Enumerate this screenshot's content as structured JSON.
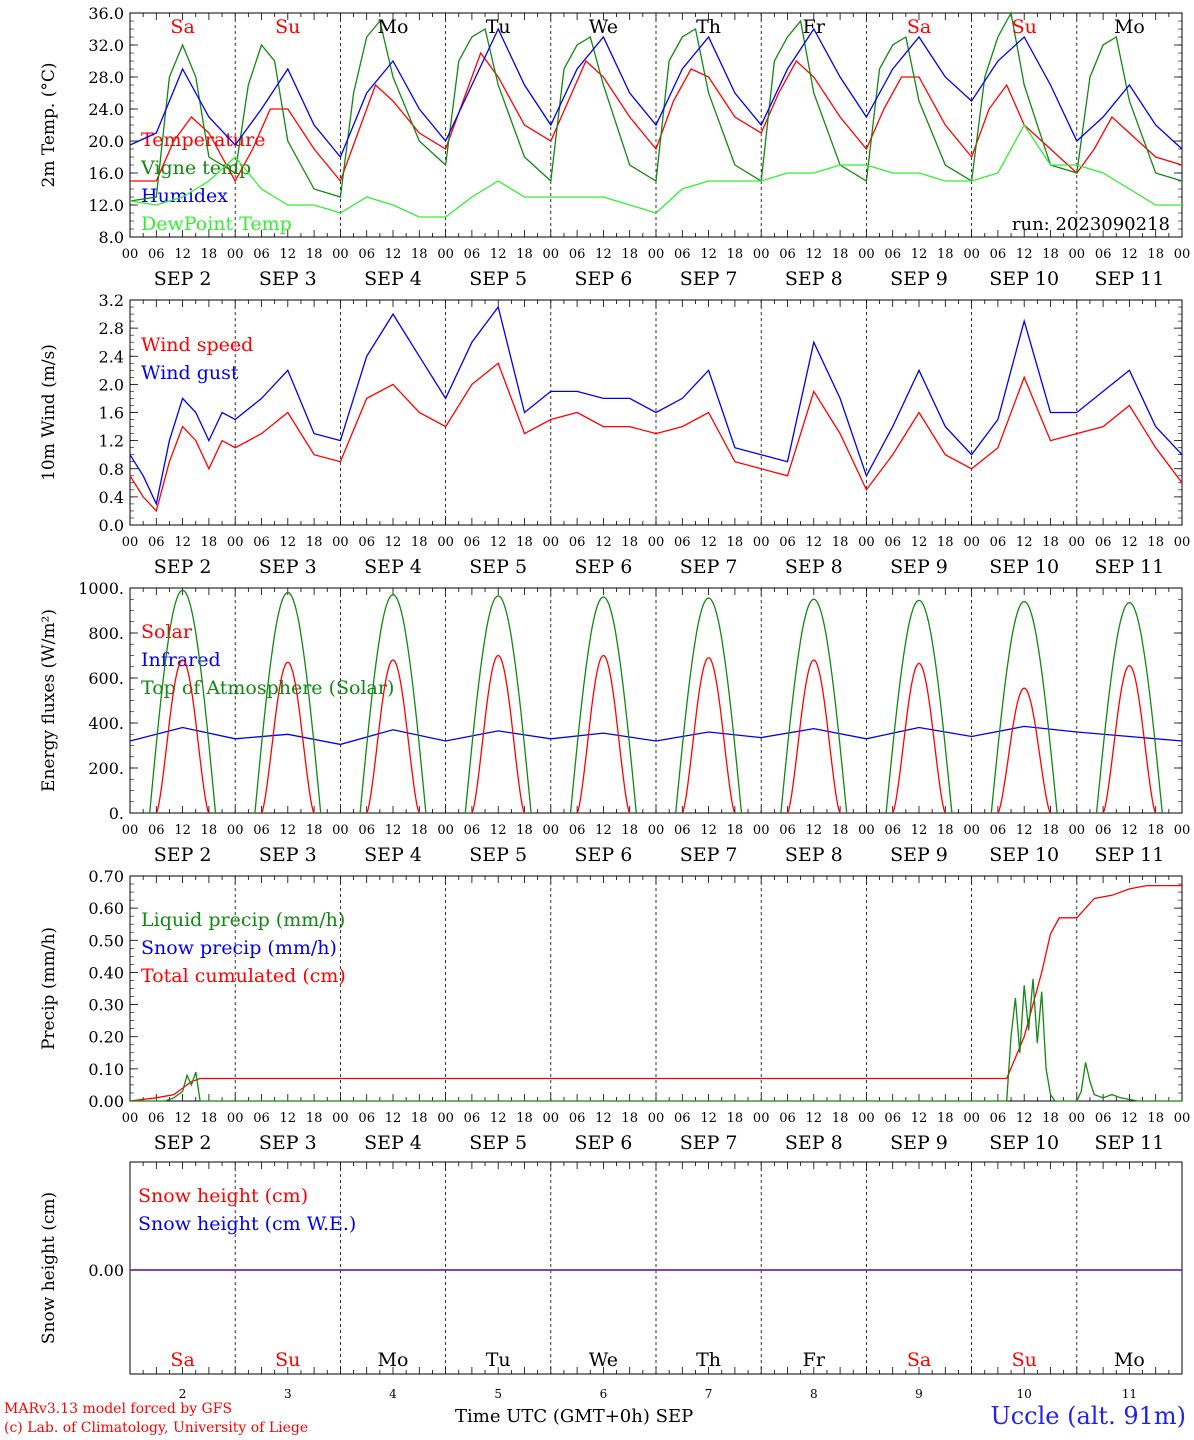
{
  "chart_data": [
    {
      "type": "line",
      "ylabel": "2m Temp. (°C)",
      "ylim": [
        8.0,
        36.0
      ],
      "yticks": [
        "8.0",
        "12.0",
        "16.0",
        "20.0",
        "24.0",
        "28.0",
        "32.0",
        "36.0"
      ],
      "annotation": "run: 2023090218",
      "legend": [
        "Temperature",
        "Vigne temp",
        "Humidex",
        "DewPoint Temp"
      ],
      "series": [
        {
          "name": "Temperature",
          "color": "#ff0000",
          "x": [
            0,
            6,
            10,
            14,
            18,
            24,
            28,
            32,
            36,
            42,
            48,
            52,
            56,
            60,
            66,
            72,
            76,
            80,
            84,
            90,
            96,
            100,
            104,
            108,
            114,
            120,
            124,
            128,
            132,
            138,
            144,
            148,
            152,
            156,
            162,
            168,
            172,
            176,
            180,
            186,
            192,
            196,
            200,
            204,
            210,
            216,
            220,
            224,
            228,
            234,
            240
          ],
          "values": [
            15,
            15,
            20,
            23,
            21,
            15,
            19,
            24,
            24,
            19,
            15,
            21,
            27,
            25,
            21,
            19,
            25,
            31,
            28,
            22,
            20,
            25,
            30,
            28,
            23,
            19,
            25,
            29,
            28,
            23,
            21,
            26,
            30,
            28,
            23,
            19,
            24,
            28,
            28,
            22,
            18,
            24,
            27,
            22,
            19,
            16,
            19,
            23,
            21,
            18,
            17
          ]
        },
        {
          "name": "Vigne temp",
          "color": "#118811",
          "x": [
            0,
            6,
            9,
            12,
            15,
            18,
            24,
            27,
            30,
            33,
            36,
            42,
            48,
            51,
            54,
            57,
            60,
            66,
            72,
            75,
            78,
            81,
            84,
            90,
            96,
            99,
            102,
            105,
            108,
            114,
            120,
            123,
            126,
            129,
            132,
            138,
            144,
            147,
            150,
            153,
            156,
            162,
            168,
            171,
            174,
            177,
            180,
            186,
            192,
            195,
            198,
            201,
            204,
            210,
            216,
            219,
            222,
            225,
            228,
            234,
            240
          ],
          "values": [
            12.5,
            13,
            28,
            32,
            28,
            18,
            16,
            27,
            32,
            30,
            20,
            14,
            13,
            26,
            33,
            35,
            28,
            20,
            17,
            30,
            33,
            34,
            27,
            18,
            15,
            29,
            32,
            33,
            27,
            17,
            15,
            30,
            33,
            34,
            26,
            17,
            15,
            30,
            33,
            35,
            26,
            17,
            15,
            29,
            32,
            33,
            25,
            17,
            15,
            28,
            33,
            36,
            27,
            17,
            16,
            28,
            32,
            33,
            25,
            16,
            15
          ]
        },
        {
          "name": "Humidex",
          "color": "#0000ee",
          "x": [
            0,
            6,
            12,
            18,
            24,
            30,
            36,
            42,
            48,
            54,
            60,
            66,
            72,
            78,
            84,
            90,
            96,
            102,
            108,
            114,
            120,
            126,
            132,
            138,
            144,
            150,
            156,
            162,
            168,
            174,
            180,
            186,
            192,
            198,
            204,
            210,
            216,
            222,
            228,
            234,
            240
          ],
          "values": [
            19.5,
            21,
            29,
            23,
            19.5,
            24,
            29,
            22,
            18,
            26,
            30,
            24,
            20,
            27,
            34,
            27,
            22,
            29,
            33,
            26,
            22,
            29,
            33,
            26,
            22,
            29,
            34,
            28,
            23,
            29,
            33,
            28,
            25,
            30,
            33,
            27,
            20,
            23,
            27,
            22,
            19
          ]
        },
        {
          "name": "DewPoint Temp",
          "color": "#33ee33",
          "x": [
            0,
            6,
            12,
            18,
            24,
            30,
            36,
            42,
            48,
            54,
            60,
            66,
            72,
            78,
            84,
            90,
            96,
            102,
            108,
            114,
            120,
            126,
            132,
            138,
            144,
            150,
            156,
            162,
            168,
            174,
            180,
            186,
            192,
            198,
            204,
            210,
            216,
            222,
            228,
            234,
            240
          ],
          "values": [
            12.5,
            12,
            13,
            15,
            18,
            14,
            12,
            12,
            11,
            13,
            12,
            10.5,
            10.5,
            13,
            15,
            13,
            13,
            13,
            13,
            12,
            11,
            14,
            15,
            15,
            15,
            16,
            16,
            17,
            17,
            16,
            16,
            15,
            15,
            16,
            22,
            17,
            17,
            16,
            14,
            12,
            12
          ]
        }
      ]
    },
    {
      "type": "line",
      "ylabel": "10m Wind (m/s)",
      "ylim": [
        0.0,
        3.2
      ],
      "yticks": [
        "0.0",
        "0.4",
        "0.8",
        "1.2",
        "1.6",
        "2.0",
        "2.4",
        "2.8",
        "3.2"
      ],
      "legend": [
        "Wind speed",
        "Wind gust"
      ],
      "series": [
        {
          "name": "Wind speed",
          "color": "#ff0000",
          "x": [
            0,
            3,
            6,
            9,
            12,
            15,
            18,
            21,
            24,
            30,
            36,
            42,
            48,
            54,
            60,
            66,
            72,
            78,
            84,
            90,
            96,
            102,
            108,
            114,
            120,
            126,
            132,
            138,
            144,
            150,
            156,
            162,
            168,
            174,
            180,
            186,
            192,
            198,
            204,
            210,
            216,
            222,
            228,
            234,
            240
          ],
          "values": [
            0.7,
            0.4,
            0.2,
            0.9,
            1.4,
            1.2,
            0.8,
            1.2,
            1.1,
            1.3,
            1.6,
            1.0,
            0.9,
            1.8,
            2.0,
            1.6,
            1.4,
            2.0,
            2.3,
            1.3,
            1.5,
            1.6,
            1.4,
            1.4,
            1.3,
            1.4,
            1.6,
            0.9,
            0.8,
            0.7,
            1.9,
            1.3,
            0.5,
            1.0,
            1.6,
            1.0,
            0.8,
            1.1,
            2.1,
            1.2,
            1.3,
            1.4,
            1.7,
            1.1,
            0.6
          ]
        },
        {
          "name": "Wind gust",
          "color": "#0000ee",
          "x": [
            0,
            3,
            6,
            9,
            12,
            15,
            18,
            21,
            24,
            30,
            36,
            42,
            48,
            54,
            60,
            66,
            72,
            78,
            84,
            90,
            96,
            102,
            108,
            114,
            120,
            126,
            132,
            138,
            144,
            150,
            156,
            162,
            168,
            174,
            180,
            186,
            192,
            198,
            204,
            210,
            216,
            222,
            228,
            234,
            240
          ],
          "values": [
            1.0,
            0.7,
            0.3,
            1.2,
            1.8,
            1.6,
            1.2,
            1.6,
            1.5,
            1.8,
            2.2,
            1.3,
            1.2,
            2.4,
            3.0,
            2.4,
            1.8,
            2.6,
            3.1,
            1.6,
            1.9,
            1.9,
            1.8,
            1.8,
            1.6,
            1.8,
            2.2,
            1.1,
            1.0,
            0.9,
            2.6,
            1.8,
            0.7,
            1.4,
            2.2,
            1.4,
            1.0,
            1.5,
            2.9,
            1.6,
            1.6,
            1.9,
            2.2,
            1.4,
            1.0
          ]
        }
      ]
    },
    {
      "type": "line",
      "ylabel": "Energy fluxes (W/m²)",
      "ylim": [
        0,
        1000
      ],
      "yticks": [
        "0.",
        "200.",
        "400.",
        "600.",
        "800.",
        "1000."
      ],
      "legend": [
        "Solar",
        "Infrared",
        "Top of Atmosphere (Solar)"
      ],
      "solar_peaks": [
        680,
        670,
        680,
        700,
        700,
        690,
        680,
        665,
        555,
        655
      ],
      "toa_peaks": [
        990,
        980,
        970,
        965,
        960,
        955,
        950,
        945,
        940,
        935
      ],
      "series": [
        {
          "name": "Infrared",
          "color": "#0000ee",
          "x": [
            0,
            12,
            24,
            36,
            48,
            60,
            72,
            84,
            96,
            108,
            120,
            132,
            144,
            156,
            168,
            180,
            192,
            204,
            216,
            228,
            240
          ],
          "values": [
            320,
            380,
            330,
            350,
            305,
            370,
            320,
            365,
            330,
            355,
            320,
            360,
            335,
            375,
            330,
            380,
            340,
            385,
            360,
            340,
            320
          ]
        }
      ]
    },
    {
      "type": "line",
      "ylabel": "Precip (mm/h)",
      "ylim": [
        0.0,
        0.7
      ],
      "yticks": [
        "0.00",
        "0.10",
        "0.20",
        "0.30",
        "0.40",
        "0.50",
        "0.60",
        "0.70"
      ],
      "legend": [
        "Liquid precip (mm/h)",
        "Snow precip (mm/h)",
        "Total cumulated (cm)"
      ],
      "series": [
        {
          "name": "Total cumulated (cm)",
          "color": "#ff0000",
          "x": [
            0,
            6,
            10,
            12,
            14,
            16,
            200,
            204,
            208,
            210,
            212,
            216,
            218,
            220,
            224,
            228,
            232,
            240
          ],
          "values": [
            0,
            0.01,
            0.02,
            0.04,
            0.06,
            0.07,
            0.07,
            0.2,
            0.4,
            0.52,
            0.57,
            0.57,
            0.6,
            0.63,
            0.64,
            0.66,
            0.67,
            0.67
          ]
        },
        {
          "name": "Liquid precip (mm/h)",
          "color": "#118811",
          "x": [
            0,
            8,
            10,
            12,
            13,
            14,
            15,
            16,
            200,
            201,
            202,
            203,
            204,
            205,
            206,
            207,
            208,
            209,
            210,
            211,
            212,
            213,
            214,
            215,
            216,
            217,
            218,
            219,
            220,
            222,
            224,
            226,
            230,
            240
          ],
          "values": [
            0,
            0,
            0.01,
            0.03,
            0.08,
            0.05,
            0.09,
            0,
            0,
            0.2,
            0.32,
            0.15,
            0.36,
            0.22,
            0.38,
            0.18,
            0.34,
            0.1,
            0.02,
            0,
            0,
            0,
            0,
            0,
            0,
            0.03,
            0.12,
            0.06,
            0.02,
            0.01,
            0.02,
            0.01,
            0,
            0
          ]
        }
      ]
    },
    {
      "type": "line",
      "ylabel": "Snow height (cm)",
      "yticks": [
        "0.00"
      ],
      "legend": [
        "Snow height (cm)",
        "Snow height (cm W.E.)"
      ],
      "series": [
        {
          "name": "Snow height (cm)",
          "color": "#ff0000",
          "x": [
            0,
            240
          ],
          "values": [
            0,
            0
          ]
        },
        {
          "name": "Snow height (cm W.E.)",
          "color": "#0000ee",
          "x": [
            0,
            240
          ],
          "values": [
            0,
            0
          ]
        }
      ]
    }
  ],
  "axis": {
    "hour_labels": [
      "00",
      "06",
      "12",
      "18"
    ],
    "final_hour": "00",
    "dates": [
      "SEP  2",
      "SEP  3",
      "SEP  4",
      "SEP  5",
      "SEP  6",
      "SEP  7",
      "SEP  8",
      "SEP  9",
      "SEP 10",
      "SEP 11"
    ],
    "day_numbers": [
      "2",
      "3",
      "4",
      "5",
      "6",
      "7",
      "8",
      "9",
      "10",
      "11"
    ],
    "day_names": [
      {
        "t": "Sa",
        "c": "#ff0000"
      },
      {
        "t": "Su",
        "c": "#ff0000"
      },
      {
        "t": "Mo",
        "c": "#000000"
      },
      {
        "t": "Tu",
        "c": "#000000"
      },
      {
        "t": "We",
        "c": "#000000"
      },
      {
        "t": "Th",
        "c": "#000000"
      },
      {
        "t": "Fr",
        "c": "#000000"
      },
      {
        "t": "Sa",
        "c": "#ff0000"
      },
      {
        "t": "Su",
        "c": "#ff0000"
      },
      {
        "t": "Mo",
        "c": "#000000"
      }
    ]
  },
  "footer": {
    "model": "MARv3.13 model forced by GFS",
    "lab": "(c) Lab. of Climatology, University of Liege",
    "xlabel": "Time UTC (GMT+0h)",
    "month": "SEP",
    "station": "Uccle (alt. 91m)"
  }
}
